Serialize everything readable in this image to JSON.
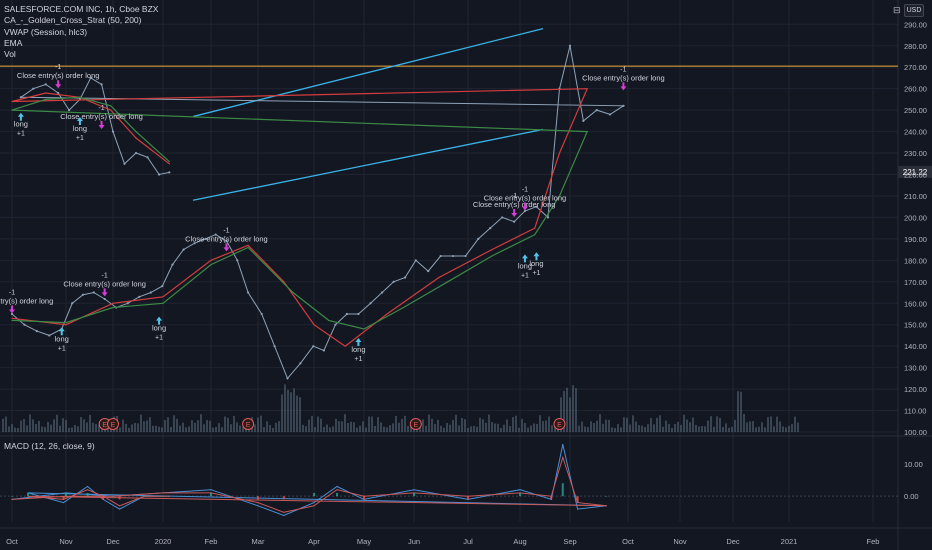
{
  "legend": {
    "symbol": "SALESFORCE.COM INC, 1h, Cboe BZX",
    "strategy": "CA_-_Golden_Cross_Strat (50, 200)",
    "vwap": "VWAP (Session, hlc3)",
    "ema": "EMA",
    "vol": "Vol"
  },
  "currency": "USD",
  "macd_label": "MACD (12, 26, close, 9)",
  "colors": {
    "background": "#131722",
    "grid": "#1f2430",
    "price": "#8fa3b8",
    "fast_ma": "#d43d3d",
    "slow_ma": "#3c8a46",
    "channel": "#3bb3e6",
    "horizontal_level": "#f0a83a",
    "volume": "#5a6b7c",
    "signal_text": "#d1d4dc",
    "buy_arrow": "#52c3e8",
    "sell_arrow": "#d63cd6"
  },
  "chart_data": [
    {
      "type": "line",
      "title": "SALESFORCE.COM INC, 1h, Cboe BZX",
      "x_ticks": [
        "Oct",
        "Nov",
        "Dec",
        "2020",
        "Feb",
        "Mar",
        "Apr",
        "May",
        "Jun",
        "Jul",
        "Aug",
        "Sep",
        "Oct",
        "Nov",
        "Dec",
        "2021",
        "Feb"
      ],
      "y_ticks": [
        "100.00",
        "110.00",
        "120.00",
        "130.00",
        "140.00",
        "150.00",
        "160.00",
        "170.00",
        "180.00",
        "190.00",
        "200.00",
        "210.00",
        "220.00",
        "230.00",
        "240.00",
        "250.00",
        "260.00",
        "270.00",
        "280.00",
        "290.00"
      ],
      "ylim": [
        100,
        292
      ],
      "last_price": "221.22",
      "horizontal_level": 270.5,
      "channel_upper": [
        [
          "Aug 15",
          288
        ],
        [
          "Jan 20",
          247
        ]
      ],
      "channel_lower": [
        [
          "Aug 15",
          241
        ],
        [
          "Jan 20",
          208
        ]
      ],
      "series": [
        {
          "key": "price",
          "x": [
            "Oct 1",
            "Oct 8",
            "Oct 15",
            "Oct 22",
            "Oct 29",
            "Nov 5",
            "Nov 12",
            "Nov 19",
            "Nov 26",
            "Dec 3",
            "Dec 10",
            "Dec 17",
            "Dec 24",
            "Dec 31",
            "Jan 7",
            "Jan 14",
            "Jan 21",
            "Jan 28",
            "Feb 4",
            "Feb 11",
            "Feb 18",
            "Feb 25",
            "Mar 3",
            "Mar 10",
            "Mar 17",
            "Mar 24",
            "Mar 31",
            "Apr 7",
            "Apr 14",
            "Apr 21",
            "Apr 28",
            "May 5",
            "May 12",
            "May 19",
            "May 26",
            "Jun 2",
            "Jun 9",
            "Jun 16",
            "Jun 23",
            "Jun 30",
            "Jul 7",
            "Jul 14",
            "Jul 21",
            "Jul 28",
            "Aug 4",
            "Aug 11",
            "Aug 18",
            "Aug 25",
            "Sep 1",
            "Sep 8",
            "Sep 15",
            "Sep 22",
            "Sep 29",
            "Oct 6",
            "Oct 13",
            "Oct 20",
            "Oct 27",
            "Nov 3",
            "Nov 10",
            "Nov 17",
            "Nov 24",
            "Dec 1",
            "Dec 8",
            "Dec 15",
            "Dec 22",
            "Dec 29",
            "Jan 5"
          ],
          "values": [
            155,
            150,
            147,
            145,
            148,
            160,
            164,
            165,
            162,
            158,
            160,
            163,
            165,
            168,
            178,
            185,
            188,
            190,
            192,
            189,
            180,
            165,
            155,
            140,
            125,
            132,
            140,
            138,
            150,
            155,
            155,
            160,
            165,
            170,
            172,
            180,
            175,
            182,
            182,
            182,
            190,
            195,
            200,
            198,
            203,
            205,
            200,
            260,
            280,
            245,
            250,
            248,
            252,
            256,
            260,
            262,
            258,
            250,
            255,
            265,
            262,
            240,
            225,
            230,
            228,
            220,
            221
          ]
        },
        {
          "key": "fast_ma",
          "x": [
            "Oct 1",
            "Nov 1",
            "Dec 1",
            "Jan 1",
            "Feb 1",
            "Feb 25",
            "Mar 15",
            "Apr 1",
            "Apr 20",
            "May 15",
            "Jun 15",
            "Jul 15",
            "Aug 10",
            "Aug 25",
            "Sep 10",
            "Oct 1",
            "Oct 20",
            "Nov 10",
            "Nov 30",
            "Dec 15",
            "Jan 5"
          ],
          "values": [
            153,
            150,
            160,
            163,
            180,
            187,
            170,
            150,
            140,
            155,
            172,
            185,
            195,
            230,
            260,
            254,
            258,
            256,
            250,
            237,
            225
          ]
        },
        {
          "key": "slow_ma",
          "x": [
            "Oct 1",
            "Nov 1",
            "Dec 1",
            "Jan 1",
            "Feb 1",
            "Feb 25",
            "Mar 20",
            "Apr 10",
            "May 1",
            "May 25",
            "Jun 20",
            "Jul 15",
            "Aug 10",
            "Aug 25",
            "Sep 10",
            "Oct 1",
            "Oct 20",
            "Nov 10",
            "Nov 30",
            "Dec 15",
            "Jan 5"
          ],
          "values": [
            152,
            151,
            158,
            160,
            178,
            186,
            165,
            152,
            148,
            158,
            170,
            182,
            192,
            210,
            240,
            250,
            255,
            256,
            252,
            240,
            226
          ]
        }
      ],
      "signals": [
        {
          "text": "Close entry(s) order long",
          "x": "Oct 1",
          "y": 158,
          "marker": "-1"
        },
        {
          "text": "long",
          "x": "Oct 29",
          "y": 146,
          "marker": "+1"
        },
        {
          "text": "Close entry(s) order long",
          "x": "Nov 26",
          "y": 166,
          "marker": "-1"
        },
        {
          "text": "long",
          "x": "Dec 29",
          "y": 151,
          "marker": "+1"
        },
        {
          "text": "Close entry(s) order long",
          "x": "Feb 11",
          "y": 187,
          "marker": "-1"
        },
        {
          "text": "long",
          "x": "Apr 28",
          "y": 141,
          "marker": "+1"
        },
        {
          "text": "Close entry(s) order long",
          "x": "Jul 28",
          "y": 203,
          "marker": "-1"
        },
        {
          "text": "Close entry(s) order long",
          "x": "Aug 4",
          "y": 206,
          "marker": "-1"
        },
        {
          "text": "long",
          "x": "Aug 4",
          "y": 180,
          "marker": "+1"
        },
        {
          "text": "long",
          "x": "Aug 11",
          "y": 181,
          "marker": "+1"
        },
        {
          "text": "Close entry(s) order long",
          "x": "Sep 29",
          "y": 262,
          "marker": "-1"
        },
        {
          "text": "long",
          "x": "Oct 6",
          "y": 246,
          "marker": "+1"
        },
        {
          "text": "Close entry(s) order long",
          "x": "Oct 27",
          "y": 263,
          "marker": "-1"
        },
        {
          "text": "long",
          "x": "Nov 10",
          "y": 244,
          "marker": "+1"
        },
        {
          "text": "Close entry(s) order long",
          "x": "Nov 24",
          "y": 244,
          "marker": "-1"
        }
      ],
      "earnings_markers": [
        {
          "x": "Nov 26",
          "label": "E"
        },
        {
          "x": "Feb 25",
          "label": "E"
        },
        {
          "x": "Jun 2",
          "label": "E"
        },
        {
          "x": "Aug 25",
          "label": "E"
        },
        {
          "x": "Dec 1",
          "label": "E"
        }
      ]
    },
    {
      "type": "line",
      "title": "MACD (12, 26, close, 9)",
      "y_ticks": [
        "10.00",
        "0.00"
      ],
      "ylim": [
        -8,
        18
      ],
      "series": [
        {
          "key": "macd",
          "x": [
            "Oct 1",
            "Nov 1",
            "Dec 1",
            "Jan 1",
            "Feb 1",
            "Mar 1",
            "Mar 15",
            "Apr 1",
            "Apr 15",
            "May 1",
            "Jun 1",
            "Jul 1",
            "Aug 1",
            "Aug 20",
            "Aug 27",
            "Sep 5",
            "Sep 20",
            "Oct 10",
            "Oct 30",
            "Nov 15",
            "Nov 25",
            "Dec 5",
            "Dec 20",
            "Jan 5"
          ],
          "values": [
            -1,
            1,
            0,
            1,
            2,
            -3,
            -6,
            -2,
            3,
            -1,
            2,
            -1,
            2,
            -1,
            16,
            -4,
            -3,
            1,
            -2,
            3,
            -1,
            -4,
            0,
            0
          ]
        },
        {
          "key": "signal",
          "x": [
            "Oct 1",
            "Nov 1",
            "Dec 1",
            "Jan 1",
            "Feb 1",
            "Mar 1",
            "Mar 15",
            "Apr 1",
            "Apr 15",
            "May 1",
            "Jun 1",
            "Jul 1",
            "Aug 1",
            "Aug 20",
            "Aug 27",
            "Sep 5",
            "Sep 20",
            "Oct 10",
            "Oct 30",
            "Nov 15",
            "Nov 25",
            "Dec 5",
            "Dec 20",
            "Jan 5"
          ],
          "values": [
            -1,
            0,
            0,
            1,
            1,
            -2,
            -5,
            -3,
            2,
            0,
            1,
            0,
            1,
            0,
            12,
            -2,
            -3,
            0,
            -1,
            2,
            0,
            -3,
            0,
            0
          ]
        }
      ]
    }
  ]
}
